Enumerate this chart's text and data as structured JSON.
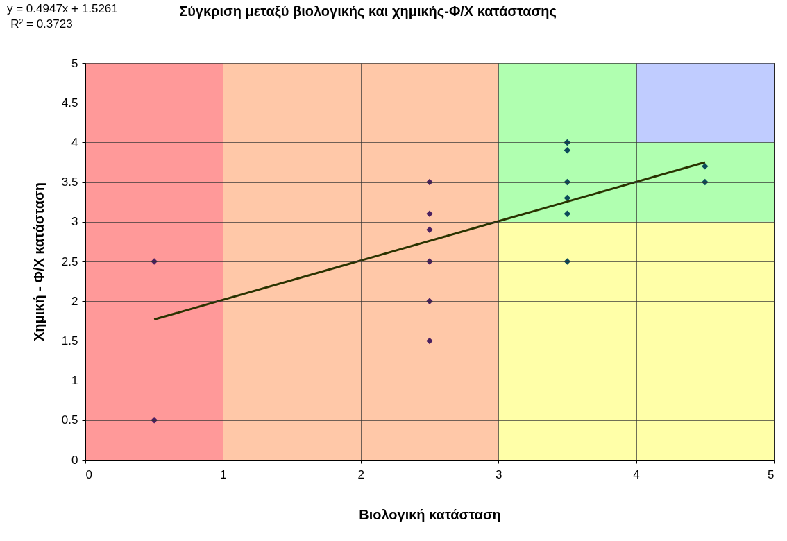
{
  "chart_data": {
    "type": "scatter",
    "title": "Σύγκριση μεταξύ βιολογικής και χημικής-Φ/Χ κατάστασης",
    "xlabel": "Βιολογική κατάσταση",
    "ylabel": "Χημική - Φ/Χ κατάσταση",
    "annotations": [
      "y = 0.4947x + 1.5261",
      "R² = 0.3723"
    ],
    "xlim": [
      0,
      5
    ],
    "xticks": [
      0,
      1,
      2,
      3,
      4,
      5
    ],
    "ylim": [
      0,
      5
    ],
    "yticks": [
      0,
      0.5,
      1,
      1.5,
      2,
      2.5,
      3,
      3.5,
      4,
      4.5,
      5
    ],
    "grid": true,
    "marker": "diamond",
    "bands": [
      {
        "axis": "x",
        "from": 3,
        "to": 4,
        "color": "#b0ffb0"
      },
      {
        "axis": "x",
        "from": 4,
        "to": 5,
        "color": "#c0ccff"
      },
      {
        "axis": "y",
        "from": 0,
        "to": 3,
        "color": "#ffffa8"
      },
      {
        "axis": "y",
        "from": 3,
        "to": 4,
        "color": "#b0ffb0"
      },
      {
        "axis": "x",
        "from": 0,
        "to": 1,
        "color": "#ff9999"
      },
      {
        "axis": "x",
        "from": 1,
        "to": 3,
        "color": "#ffc8a8"
      }
    ],
    "series": [
      {
        "color": "#4a2060",
        "x": [
          0.5,
          0.5,
          2.5,
          2.5,
          2.5,
          2.5,
          2.5,
          2.5
        ],
        "values": [
          2.5,
          0.5,
          3.5,
          3.1,
          2.9,
          2.5,
          2,
          1.5
        ]
      },
      {
        "color": "#0b4a5a",
        "x": [
          3.5,
          3.5,
          3.5,
          3.5,
          3.5,
          3.5,
          4.5,
          4.5
        ],
        "values": [
          4,
          3.9,
          3.5,
          3.3,
          3.1,
          2.5,
          3.7,
          3.5
        ]
      },
      {
        "type": "line",
        "marker": "none",
        "color": "#2a3300",
        "x": [
          0.5,
          4.5
        ],
        "values": [
          1.77,
          3.75
        ]
      }
    ]
  }
}
